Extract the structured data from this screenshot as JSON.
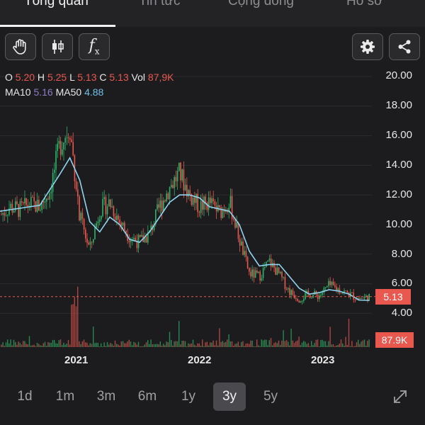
{
  "tabs": [
    {
      "label": "Tổng quan"
    },
    {
      "label": "Tin tức"
    },
    {
      "label": "Cộng đồng"
    },
    {
      "label": "Hồ sơ"
    }
  ],
  "ohlc": {
    "o_label": "O",
    "o": "5.20",
    "h_label": "H",
    "h": "5.25",
    "l_label": "L",
    "l": "5.13",
    "c_label": "C",
    "c": "5.13",
    "vol_label": "Vol",
    "vol": "87,9K"
  },
  "ma": {
    "ma10_label": "MA10",
    "ma10": "5.16",
    "ma50_label": "MA50",
    "ma50": "4.88"
  },
  "price_badge": "5.13",
  "volume_badge": "87.9K",
  "colors": {
    "up": "#2fb56a",
    "down": "#e9584f",
    "ma_line": "#8fd3f0",
    "grid": "#2c2c2e"
  },
  "icons": [
    "hand-icon",
    "candlestick-icon",
    "fx-icon",
    "gear-icon",
    "share-icon",
    "expand-icon"
  ],
  "chart_data": {
    "type": "line",
    "title": "",
    "y_ticks": [
      "20.00",
      "18.00",
      "16.00",
      "14.00",
      "12.00",
      "10.00",
      "8.00",
      "6.00",
      "4.00"
    ],
    "ylim": [
      4,
      20
    ],
    "x_ticks": [
      "2021",
      "2022",
      "2023"
    ],
    "last_price": 5.13,
    "price_series": [
      [
        "2020-04",
        10.6
      ],
      [
        "2020-05",
        11.2
      ],
      [
        "2020-06",
        11.0
      ],
      [
        "2020-07",
        11.4
      ],
      [
        "2020-08",
        11.2
      ],
      [
        "2020-09",
        12.3
      ],
      [
        "2020-10",
        15.4
      ],
      [
        "2020-11",
        16.6
      ],
      [
        "2020-12",
        10.5
      ],
      [
        "2021-01",
        8.3
      ],
      [
        "2021-02",
        11.0
      ],
      [
        "2021-03",
        11.5
      ],
      [
        "2021-04",
        10.2
      ],
      [
        "2021-05",
        9.2
      ],
      [
        "2021-06",
        8.8
      ],
      [
        "2021-07",
        9.4
      ],
      [
        "2021-08",
        11.2
      ],
      [
        "2021-09",
        12.5
      ],
      [
        "2021-10",
        13.5
      ],
      [
        "2021-11",
        12.0
      ],
      [
        "2021-12",
        11.2
      ],
      [
        "2022-01",
        11.5
      ],
      [
        "2022-02",
        10.8
      ],
      [
        "2022-03",
        11.6
      ],
      [
        "2022-04",
        9.0
      ],
      [
        "2022-05",
        6.7
      ],
      [
        "2022-06",
        6.5
      ],
      [
        "2022-07",
        7.5
      ],
      [
        "2022-08",
        6.6
      ],
      [
        "2022-09",
        5.5
      ],
      [
        "2022-10",
        5.0
      ],
      [
        "2022-11",
        5.3
      ],
      [
        "2022-12",
        5.2
      ],
      [
        "2023-01",
        5.9
      ],
      [
        "2023-02",
        5.6
      ],
      [
        "2023-03",
        5.3
      ],
      [
        "2023-04",
        5.0
      ],
      [
        "2023-05",
        5.13
      ]
    ],
    "ma50_series": [
      [
        "2020-04",
        10.9
      ],
      [
        "2020-06",
        11.1
      ],
      [
        "2020-08",
        11.3
      ],
      [
        "2020-10",
        13.4
      ],
      [
        "2020-11",
        14.5
      ],
      [
        "2020-12",
        13.0
      ],
      [
        "2021-01",
        10.2
      ],
      [
        "2021-02",
        9.5
      ],
      [
        "2021-03",
        10.5
      ],
      [
        "2021-04",
        10.0
      ],
      [
        "2021-05",
        9.0
      ],
      [
        "2021-06",
        8.8
      ],
      [
        "2021-07",
        9.5
      ],
      [
        "2021-08",
        10.5
      ],
      [
        "2021-09",
        11.5
      ],
      [
        "2021-10",
        12.0
      ],
      [
        "2021-11",
        12.0
      ],
      [
        "2021-12",
        11.8
      ],
      [
        "2022-01",
        11.2
      ],
      [
        "2022-03",
        10.9
      ],
      [
        "2022-04",
        10.0
      ],
      [
        "2022-05",
        8.2
      ],
      [
        "2022-06",
        7.2
      ],
      [
        "2022-07",
        7.3
      ],
      [
        "2022-08",
        7.3
      ],
      [
        "2022-09",
        6.5
      ],
      [
        "2022-10",
        5.7
      ],
      [
        "2022-11",
        5.3
      ],
      [
        "2022-12",
        5.4
      ],
      [
        "2023-01",
        5.6
      ],
      [
        "2023-02",
        5.5
      ],
      [
        "2023-03",
        5.3
      ],
      [
        "2023-04",
        4.9
      ],
      [
        "2023-05",
        4.88
      ]
    ]
  },
  "ranges": [
    {
      "label": "1d"
    },
    {
      "label": "1m"
    },
    {
      "label": "3m"
    },
    {
      "label": "6m"
    },
    {
      "label": "1y"
    },
    {
      "label": "3y"
    },
    {
      "label": "5y"
    }
  ],
  "active_range": "3y"
}
